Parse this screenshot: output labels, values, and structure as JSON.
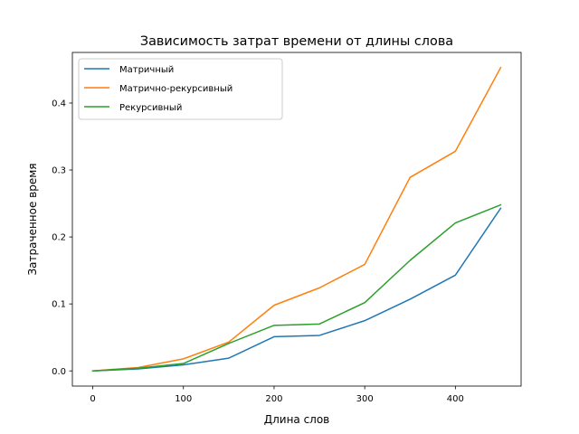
{
  "chart_data": {
    "type": "line",
    "title": "Зависимость затрат времени от длины слова",
    "xlabel": "Длина слов",
    "ylabel": "Затраченное время",
    "x": [
      0,
      50,
      100,
      150,
      200,
      250,
      300,
      350,
      400,
      450
    ],
    "xlim": [
      -22.5,
      472.5
    ],
    "ylim": [
      -0.0227,
      0.4756
    ],
    "xticks": [
      0,
      100,
      200,
      300,
      400
    ],
    "yticks": [
      0.0,
      0.1,
      0.2,
      0.3,
      0.4
    ],
    "xtick_labels": [
      "0",
      "100",
      "200",
      "300",
      "400"
    ],
    "ytick_labels": [
      "0.0",
      "0.1",
      "0.2",
      "0.3",
      "0.4"
    ],
    "grid": false,
    "legend_position": "top-left",
    "series": [
      {
        "name": "Матричный",
        "color": "#1f77b4",
        "values": [
          0.0,
          0.003,
          0.009,
          0.019,
          0.051,
          0.053,
          0.075,
          0.107,
          0.143,
          0.243
        ]
      },
      {
        "name": "Матрично-рекурсивный",
        "color": "#ff7f0e",
        "values": [
          0.0,
          0.005,
          0.018,
          0.043,
          0.098,
          0.124,
          0.159,
          0.289,
          0.328,
          0.453
        ]
      },
      {
        "name": "Рекурсивный",
        "color": "#2ca02c",
        "values": [
          0.0,
          0.004,
          0.011,
          0.041,
          0.068,
          0.07,
          0.102,
          0.165,
          0.221,
          0.248
        ]
      }
    ]
  }
}
